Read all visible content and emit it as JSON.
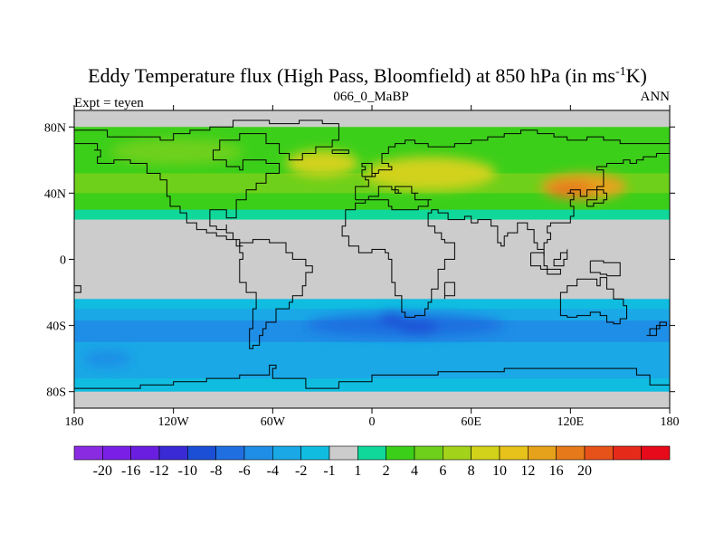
{
  "title": {
    "main": "Eddy Temperature flux (High Pass, Bloomfield) at 850 hPa (in ms",
    "superscript": "-1",
    "suffix": "K)"
  },
  "left_label": "Expt = teyen",
  "center_label": "066_0_MaBP",
  "right_label": "ANN",
  "map_axes": {
    "lat_ticks": [
      "80N",
      "40N",
      "0",
      "40S",
      "80S"
    ],
    "lon_ticks": [
      "180",
      "120W",
      "60W",
      "0",
      "60E",
      "120E",
      "180"
    ]
  },
  "colorbar": {
    "colors": [
      "#8a2be2",
      "#7a20e6",
      "#6a1fe0",
      "#3a2ad6",
      "#1a4fd6",
      "#1f6fe0",
      "#1f8ee6",
      "#1aa8e6",
      "#10bde0",
      "#cccccc",
      "#10d89a",
      "#3ccf1a",
      "#6ed01a",
      "#a2d21a",
      "#d2d21a",
      "#e6c21a",
      "#e6a21a",
      "#e67a1a",
      "#e6521a",
      "#e62a1a",
      "#e60a1a"
    ],
    "labels": [
      "-20",
      "-16",
      "-12",
      "-10",
      "-8",
      "-6",
      "-4",
      "-2",
      "-1",
      "1",
      "2",
      "4",
      "6",
      "8",
      "10",
      "12",
      "16",
      "20"
    ]
  },
  "chart_data": {
    "type": "heatmap",
    "variable": "Eddy Temperature flux (High Pass, Bloomfield) at 850 hPa",
    "units": "m s-1 K",
    "projection": "cylindrical equidistant",
    "lon_range": [
      -180,
      180
    ],
    "lat_range": [
      -90,
      90
    ],
    "bands": [
      {
        "lat_from": 90,
        "lat_to": 80,
        "value": 0
      },
      {
        "lat_from": 80,
        "lat_to": 65,
        "value": 2
      },
      {
        "lat_from": 65,
        "lat_to": 52,
        "value": 3
      },
      {
        "lat_from": 52,
        "lat_to": 40,
        "value": 5
      },
      {
        "lat_from": 40,
        "lat_to": 30,
        "value": 3
      },
      {
        "lat_from": 30,
        "lat_to": 24,
        "value": 1.5
      },
      {
        "lat_from": 24,
        "lat_to": -24,
        "value": 0
      },
      {
        "lat_from": -24,
        "lat_to": -30,
        "value": -1.5
      },
      {
        "lat_from": -30,
        "lat_to": -37,
        "value": -3
      },
      {
        "lat_from": -37,
        "lat_to": -50,
        "value": -6
      },
      {
        "lat_from": -50,
        "lat_to": -62,
        "value": -4
      },
      {
        "lat_from": -62,
        "lat_to": -72,
        "value": -3
      },
      {
        "lat_from": -72,
        "lat_to": -80,
        "value": -1.5
      },
      {
        "lat_from": -80,
        "lat_to": -90,
        "value": 0
      }
    ],
    "blobs": [
      {
        "lon": 128,
        "lat": 44,
        "rlon": 26,
        "rlat": 8,
        "value": 12
      },
      {
        "lon": 120,
        "lat": 42,
        "rlon": 14,
        "rlat": 5,
        "value": 16
      },
      {
        "lon": 35,
        "lat": 52,
        "rlon": 40,
        "rlat": 10,
        "value": 8
      },
      {
        "lon": -30,
        "lat": 58,
        "rlon": 22,
        "rlat": 8,
        "value": 9
      },
      {
        "lon": -118,
        "lat": 65,
        "rlon": 40,
        "rlat": 8,
        "value": 4
      },
      {
        "lon": 20,
        "lat": -40,
        "rlon": 60,
        "rlat": 7,
        "value": -8
      },
      {
        "lon": 12,
        "lat": -36,
        "rlon": 8,
        "rlat": 4,
        "value": -10
      },
      {
        "lon": 28,
        "lat": -41,
        "rlon": 12,
        "rlat": 4,
        "value": -10
      },
      {
        "lon": -160,
        "lat": -60,
        "rlon": 15,
        "rlat": 5,
        "value": -6
      }
    ],
    "coastlines": [
      [
        [
          -180,
          78
        ],
        [
          -168,
          78
        ],
        [
          -160,
          74
        ],
        [
          -150,
          74
        ],
        [
          -140,
          74
        ],
        [
          -128,
          72
        ],
        [
          -120,
          76
        ],
        [
          -110,
          78
        ],
        [
          -98,
          80
        ],
        [
          -84,
          84
        ],
        [
          -74,
          84
        ],
        [
          -62,
          82
        ],
        [
          -44,
          84
        ],
        [
          -30,
          82
        ],
        [
          -20,
          80
        ],
        [
          -20,
          72
        ],
        [
          -24,
          68
        ],
        [
          -34,
          64
        ],
        [
          -42,
          60
        ],
        [
          -50,
          64
        ],
        [
          -56,
          70
        ],
        [
          -62,
          70
        ],
        [
          -64,
          76
        ],
        [
          -74,
          76
        ],
        [
          -80,
          72
        ],
        [
          -92,
          66
        ],
        [
          -96,
          60
        ],
        [
          -88,
          56
        ],
        [
          -80,
          54
        ],
        [
          -78,
          60
        ],
        [
          -70,
          60
        ],
        [
          -64,
          58
        ],
        [
          -56,
          52
        ],
        [
          -64,
          46
        ],
        [
          -70,
          42
        ],
        [
          -76,
          36
        ],
        [
          -82,
          30
        ],
        [
          -82,
          25
        ],
        [
          -88,
          30
        ],
        [
          -94,
          30
        ],
        [
          -98,
          26
        ],
        [
          -98,
          20
        ],
        [
          -94,
          18
        ],
        [
          -88,
          21
        ],
        [
          -88,
          16
        ],
        [
          -84,
          12
        ],
        [
          -80,
          8
        ],
        [
          -78,
          8
        ],
        [
          -82,
          12
        ],
        [
          -88,
          14
        ],
        [
          -94,
          16
        ],
        [
          -100,
          18
        ],
        [
          -106,
          22
        ],
        [
          -112,
          28
        ],
        [
          -116,
          32
        ],
        [
          -122,
          38
        ],
        [
          -124,
          44
        ],
        [
          -124,
          48
        ],
        [
          -128,
          52
        ],
        [
          -136,
          58
        ],
        [
          -146,
          60
        ],
        [
          -156,
          58
        ],
        [
          -162,
          58
        ],
        [
          -166,
          62
        ],
        [
          -164,
          66
        ],
        [
          -168,
          66
        ],
        [
          -166,
          70
        ],
        [
          -180,
          70
        ]
      ],
      [
        [
          -10,
          36
        ],
        [
          -6,
          36
        ],
        [
          -2,
          38
        ],
        [
          4,
          44
        ],
        [
          8,
          44
        ],
        [
          12,
          42
        ],
        [
          16,
          40
        ],
        [
          18,
          40
        ],
        [
          14,
          44
        ],
        [
          18,
          44
        ],
        [
          24,
          40
        ],
        [
          28,
          40
        ],
        [
          26,
          36
        ],
        [
          30,
          36
        ],
        [
          36,
          36
        ],
        [
          34,
          32
        ],
        [
          28,
          30
        ],
        [
          18,
          30
        ],
        [
          12,
          32
        ],
        [
          10,
          36
        ],
        [
          2,
          36
        ],
        [
          -4,
          34
        ],
        [
          -10,
          30
        ],
        [
          -16,
          20
        ],
        [
          -18,
          14
        ],
        [
          -14,
          8
        ],
        [
          -8,
          4
        ],
        [
          0,
          6
        ],
        [
          8,
          4
        ],
        [
          10,
          0
        ],
        [
          12,
          -6
        ],
        [
          12,
          -14
        ],
        [
          14,
          -22
        ],
        [
          18,
          -32
        ],
        [
          20,
          -35
        ],
        [
          26,
          -34
        ],
        [
          32,
          -30
        ],
        [
          34,
          -26
        ],
        [
          36,
          -18
        ],
        [
          40,
          -14
        ],
        [
          40,
          -6
        ],
        [
          44,
          0
        ],
        [
          50,
          10
        ],
        [
          46,
          10
        ],
        [
          44,
          12
        ],
        [
          42,
          16
        ],
        [
          38,
          20
        ],
        [
          34,
          28
        ],
        [
          36,
          30
        ],
        [
          40,
          28
        ],
        [
          46,
          24
        ],
        [
          50,
          24
        ],
        [
          56,
          26
        ],
        [
          60,
          22
        ],
        [
          64,
          24
        ],
        [
          68,
          24
        ],
        [
          72,
          20
        ],
        [
          76,
          10
        ],
        [
          78,
          8
        ],
        [
          80,
          14
        ],
        [
          82,
          16
        ],
        [
          88,
          22
        ],
        [
          92,
          22
        ],
        [
          94,
          18
        ],
        [
          98,
          16
        ],
        [
          98,
          10
        ],
        [
          100,
          6
        ],
        [
          104,
          2
        ],
        [
          104,
          10
        ],
        [
          106,
          12
        ],
        [
          108,
          16
        ],
        [
          106,
          20
        ],
        [
          108,
          22
        ],
        [
          114,
          22
        ],
        [
          120,
          26
        ],
        [
          122,
          32
        ],
        [
          120,
          36
        ],
        [
          122,
          40
        ],
        [
          118,
          40
        ],
        [
          120,
          42
        ],
        [
          126,
          38
        ],
        [
          130,
          42
        ],
        [
          136,
          44
        ],
        [
          140,
          48
        ],
        [
          140,
          54
        ],
        [
          136,
          56
        ],
        [
          142,
          58
        ],
        [
          152,
          60
        ],
        [
          156,
          58
        ],
        [
          160,
          60
        ],
        [
          164,
          62
        ],
        [
          172,
          64
        ],
        [
          180,
          66
        ],
        [
          180,
          70
        ],
        [
          170,
          70
        ],
        [
          160,
          70
        ],
        [
          150,
          72
        ],
        [
          140,
          74
        ],
        [
          130,
          72
        ],
        [
          118,
          74
        ],
        [
          110,
          76
        ],
        [
          100,
          78
        ],
        [
          90,
          76
        ],
        [
          80,
          74
        ],
        [
          70,
          72
        ],
        [
          60,
          70
        ],
        [
          50,
          68
        ],
        [
          40,
          68
        ],
        [
          34,
          70
        ],
        [
          26,
          72
        ],
        [
          20,
          70
        ],
        [
          14,
          68
        ],
        [
          10,
          64
        ],
        [
          6,
          62
        ],
        [
          6,
          58
        ],
        [
          10,
          56
        ],
        [
          12,
          54
        ],
        [
          8,
          54
        ],
        [
          4,
          52
        ],
        [
          0,
          50
        ],
        [
          -4,
          48
        ],
        [
          -2,
          44
        ],
        [
          -8,
          44
        ],
        [
          -10,
          40
        ],
        [
          -10,
          36
        ]
      ],
      [
        [
          -80,
          10
        ],
        [
          -72,
          12
        ],
        [
          -62,
          10
        ],
        [
          -52,
          4
        ],
        [
          -48,
          0
        ],
        [
          -40,
          -4
        ],
        [
          -36,
          -8
        ],
        [
          -40,
          -16
        ],
        [
          -42,
          -22
        ],
        [
          -48,
          -26
        ],
        [
          -50,
          -30
        ],
        [
          -58,
          -34
        ],
        [
          -58,
          -38
        ],
        [
          -64,
          -42
        ],
        [
          -66,
          -46
        ],
        [
          -68,
          -52
        ],
        [
          -72,
          -54
        ],
        [
          -74,
          -50
        ],
        [
          -74,
          -42
        ],
        [
          -72,
          -30
        ],
        [
          -70,
          -20
        ],
        [
          -76,
          -14
        ],
        [
          -80,
          -6
        ],
        [
          -80,
          0
        ],
        [
          -78,
          4
        ],
        [
          -80,
          10
        ]
      ],
      [
        [
          114,
          -22
        ],
        [
          114,
          -34
        ],
        [
          118,
          -35
        ],
        [
          124,
          -34
        ],
        [
          132,
          -32
        ],
        [
          138,
          -34
        ],
        [
          142,
          -38
        ],
        [
          146,
          -39
        ],
        [
          150,
          -36
        ],
        [
          154,
          -28
        ],
        [
          152,
          -24
        ],
        [
          146,
          -18
        ],
        [
          142,
          -11
        ],
        [
          138,
          -16
        ],
        [
          136,
          -12
        ],
        [
          130,
          -12
        ],
        [
          124,
          -16
        ],
        [
          118,
          -20
        ],
        [
          114,
          -22
        ]
      ],
      [
        [
          -180,
          -78
        ],
        [
          -160,
          -78
        ],
        [
          -140,
          -76
        ],
        [
          -120,
          -74
        ],
        [
          -100,
          -72
        ],
        [
          -80,
          -70
        ],
        [
          -62,
          -64
        ],
        [
          -58,
          -66
        ],
        [
          -60,
          -72
        ],
        [
          -40,
          -78
        ],
        [
          -20,
          -74
        ],
        [
          0,
          -70
        ],
        [
          20,
          -70
        ],
        [
          40,
          -68
        ],
        [
          60,
          -68
        ],
        [
          80,
          -66
        ],
        [
          100,
          -66
        ],
        [
          120,
          -66
        ],
        [
          140,
          -66
        ],
        [
          160,
          -70
        ],
        [
          168,
          -76
        ],
        [
          180,
          -78
        ]
      ],
      [
        [
          -6,
          50
        ],
        [
          2,
          52
        ],
        [
          0,
          58
        ],
        [
          -4,
          58
        ],
        [
          -6,
          56
        ],
        [
          -4,
          54
        ],
        [
          -6,
          50
        ]
      ],
      [
        [
          -24,
          64
        ],
        [
          -14,
          64
        ],
        [
          -14,
          66
        ],
        [
          -22,
          66
        ],
        [
          -24,
          64
        ]
      ],
      [
        [
          130,
          32
        ],
        [
          134,
          34
        ],
        [
          140,
          36
        ],
        [
          142,
          40
        ],
        [
          140,
          42
        ],
        [
          136,
          36
        ],
        [
          130,
          32
        ]
      ],
      [
        [
          96,
          4
        ],
        [
          104,
          -4
        ],
        [
          106,
          -6
        ],
        [
          102,
          -4
        ],
        [
          96,
          4
        ]
      ],
      [
        [
          110,
          0
        ],
        [
          114,
          4
        ],
        [
          118,
          6
        ],
        [
          118,
          0
        ],
        [
          116,
          -4
        ],
        [
          110,
          -2
        ],
        [
          110,
          0
        ]
      ],
      [
        [
          106,
          -6
        ],
        [
          114,
          -8
        ],
        [
          114,
          -9
        ],
        [
          106,
          -7
        ],
        [
          106,
          -6
        ]
      ],
      [
        [
          132,
          -1
        ],
        [
          140,
          -2
        ],
        [
          150,
          -6
        ],
        [
          150,
          -10
        ],
        [
          142,
          -9
        ],
        [
          138,
          -8
        ],
        [
          132,
          -1
        ]
      ],
      [
        [
          44,
          -14
        ],
        [
          50,
          -16
        ],
        [
          50,
          -22
        ],
        [
          44,
          -24
        ],
        [
          44,
          -14
        ]
      ],
      [
        [
          166,
          -46
        ],
        [
          172,
          -40
        ],
        [
          178,
          -38
        ],
        [
          174,
          -42
        ],
        [
          168,
          -46
        ],
        [
          166,
          -46
        ]
      ],
      [
        [
          -180,
          -16
        ],
        [
          -176,
          -16
        ],
        [
          -176,
          -20
        ],
        [
          -180,
          -20
        ],
        [
          -180,
          -16
        ]
      ]
    ]
  }
}
